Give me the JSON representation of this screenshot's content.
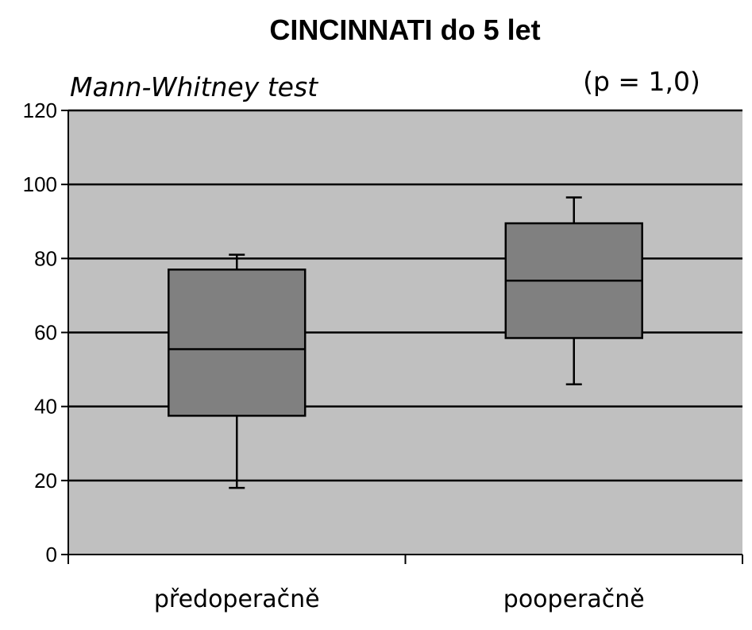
{
  "chart_data": {
    "type": "box",
    "title": "CINCINNATI do 5 let",
    "annotations": {
      "test": "Mann-Whitney test",
      "p_value": "(p = 1,0)"
    },
    "xlabel": "",
    "ylabel": "",
    "ylim": [
      0,
      120
    ],
    "yticks": [
      "0",
      "20",
      "40",
      "60",
      "80",
      "100",
      "120"
    ],
    "grid": true,
    "categories": [
      "předoperačně",
      "pooperačně"
    ],
    "boxes": [
      {
        "category": "předoperačně",
        "min": 18,
        "q1": 37.5,
        "median": 55.5,
        "q3": 77,
        "max": 81
      },
      {
        "category": "pooperačně",
        "min": 46,
        "q1": 58.5,
        "median": 74,
        "q3": 89.5,
        "max": 96.5
      }
    ],
    "colors": {
      "plot_background": "#c0c0c0",
      "box_fill": "#808080",
      "lines": "#000000"
    }
  }
}
